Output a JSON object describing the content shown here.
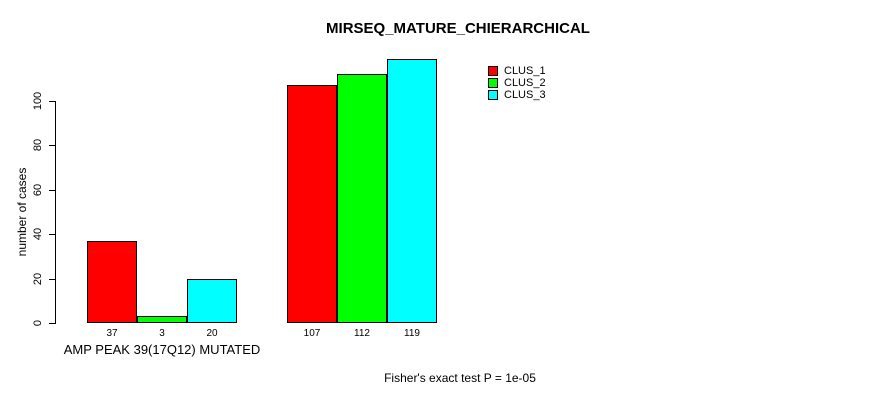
{
  "page": {
    "background_color": "#ffffff",
    "text_color": "#000000"
  },
  "chart_data": {
    "type": "bar",
    "title": "MIRSEQ_MATURE_CHIERARCHICAL",
    "ylabel": "number of cases",
    "xlabel": "",
    "ylim": [
      0,
      120
    ],
    "yticks": [
      0,
      20,
      40,
      60,
      80,
      100
    ],
    "grid": false,
    "legend_position": "right",
    "categories": [
      "AMP PEAK 39(17Q12) MUTATED",
      ""
    ],
    "series": [
      {
        "name": "CLUS_1",
        "color": "#ff0000",
        "values": [
          37,
          107
        ]
      },
      {
        "name": "CLUS_2",
        "color": "#00ff00",
        "values": [
          3,
          112
        ]
      },
      {
        "name": "CLUS_3",
        "color": "#00ffff",
        "values": [
          20,
          119
        ]
      }
    ],
    "bar_labels_shown": true,
    "annotation": "Fisher's exact test P = 1e-05"
  }
}
